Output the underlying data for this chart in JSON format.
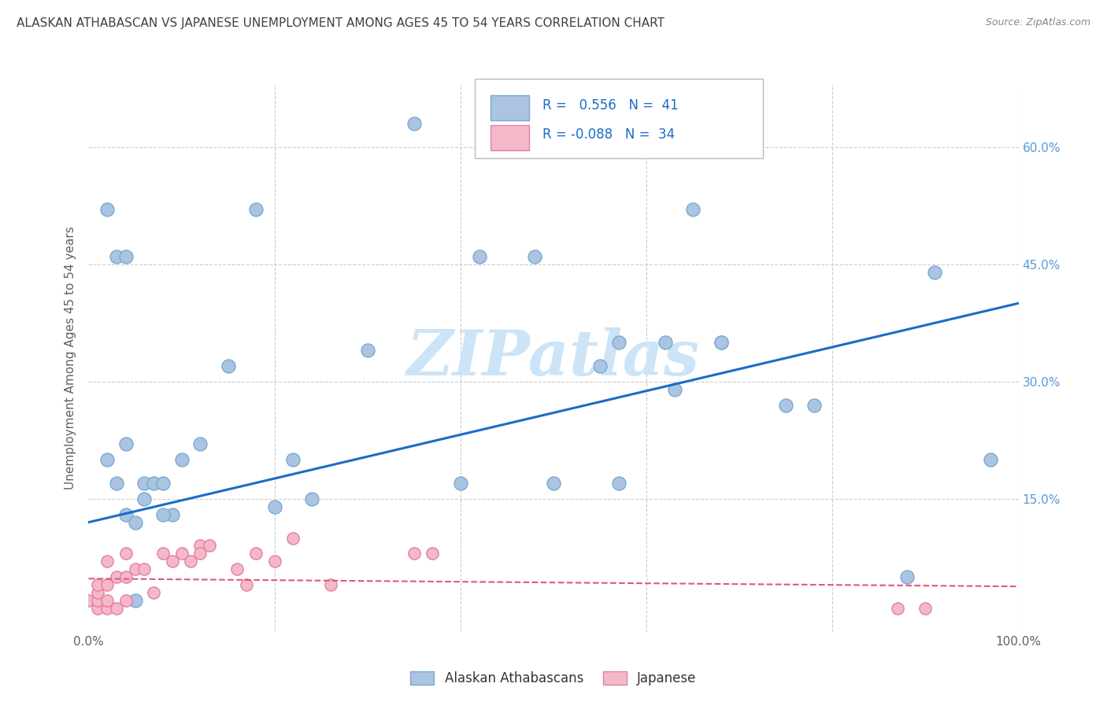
{
  "title": "ALASKAN ATHABASCAN VS JAPANESE UNEMPLOYMENT AMONG AGES 45 TO 54 YEARS CORRELATION CHART",
  "source": "Source: ZipAtlas.com",
  "ylabel": "Unemployment Among Ages 45 to 54 years",
  "xlim": [
    0,
    1.0
  ],
  "ylim": [
    -0.02,
    0.68
  ],
  "yticks": [
    0.15,
    0.3,
    0.45,
    0.6
  ],
  "yticklabels": [
    "15.0%",
    "30.0%",
    "45.0%",
    "60.0%"
  ],
  "xtick_positions": [
    0.0,
    0.2,
    0.4,
    0.6,
    0.8,
    1.0
  ],
  "xticklabels": [
    "0.0%",
    "",
    "",
    "",
    "",
    "100.0%"
  ],
  "legend_labels": [
    "Alaskan Athabascans",
    "Japanese"
  ],
  "blue_scatter_x": [
    0.02,
    0.02,
    0.03,
    0.04,
    0.04,
    0.05,
    0.06,
    0.07,
    0.08,
    0.09,
    0.1,
    0.12,
    0.15,
    0.18,
    0.22,
    0.24,
    0.3,
    0.4,
    0.42,
    0.48,
    0.5,
    0.55,
    0.57,
    0.57,
    0.62,
    0.63,
    0.65,
    0.68,
    0.68,
    0.75,
    0.78,
    0.88,
    0.91,
    0.97,
    0.03,
    0.04,
    0.05,
    0.06,
    0.08,
    0.2,
    0.35
  ],
  "blue_scatter_y": [
    0.52,
    0.2,
    0.17,
    0.22,
    0.13,
    0.12,
    0.17,
    0.17,
    0.17,
    0.13,
    0.2,
    0.22,
    0.32,
    0.52,
    0.2,
    0.15,
    0.34,
    0.17,
    0.46,
    0.46,
    0.17,
    0.32,
    0.35,
    0.17,
    0.35,
    0.29,
    0.52,
    0.35,
    0.35,
    0.27,
    0.27,
    0.05,
    0.44,
    0.2,
    0.46,
    0.46,
    0.02,
    0.15,
    0.13,
    0.14,
    0.63
  ],
  "pink_scatter_x": [
    0.0,
    0.01,
    0.01,
    0.01,
    0.01,
    0.02,
    0.02,
    0.02,
    0.02,
    0.03,
    0.03,
    0.04,
    0.04,
    0.04,
    0.05,
    0.06,
    0.07,
    0.08,
    0.09,
    0.1,
    0.11,
    0.12,
    0.12,
    0.13,
    0.16,
    0.17,
    0.18,
    0.2,
    0.22,
    0.26,
    0.35,
    0.37,
    0.87,
    0.9
  ],
  "pink_scatter_y": [
    0.02,
    0.01,
    0.02,
    0.03,
    0.04,
    0.01,
    0.02,
    0.04,
    0.07,
    0.01,
    0.05,
    0.02,
    0.05,
    0.08,
    0.06,
    0.06,
    0.03,
    0.08,
    0.07,
    0.08,
    0.07,
    0.09,
    0.08,
    0.09,
    0.06,
    0.04,
    0.08,
    0.07,
    0.1,
    0.04,
    0.08,
    0.08,
    0.01,
    0.01
  ],
  "blue_line_x": [
    0.0,
    1.0
  ],
  "blue_line_y": [
    0.12,
    0.4
  ],
  "pink_line_x": [
    0.0,
    1.0
  ],
  "pink_line_y": [
    0.048,
    0.038
  ],
  "scatter_blue_color": "#aac4e2",
  "scatter_blue_edge": "#7aaad0",
  "scatter_pink_color": "#f5b8c8",
  "scatter_pink_edge": "#e080a0",
  "line_blue_color": "#1a6cc8",
  "line_pink_color": "#e05878",
  "background_color": "#ffffff",
  "grid_color": "#cccccc",
  "title_color": "#404040",
  "axis_label_color": "#606060",
  "right_tick_color": "#5599dd",
  "bottom_tick_color": "#606060",
  "watermark_color": "#cce4f7",
  "legend_box_blue": "#aac4e2",
  "legend_box_pink": "#f5b8c8",
  "legend_box_blue_edge": "#7aaad0",
  "legend_box_pink_edge": "#e080a0",
  "legend_r_color": "#1a6cc8",
  "legend_text_color": "#333333",
  "legend_n_color": "#1a6cc8"
}
